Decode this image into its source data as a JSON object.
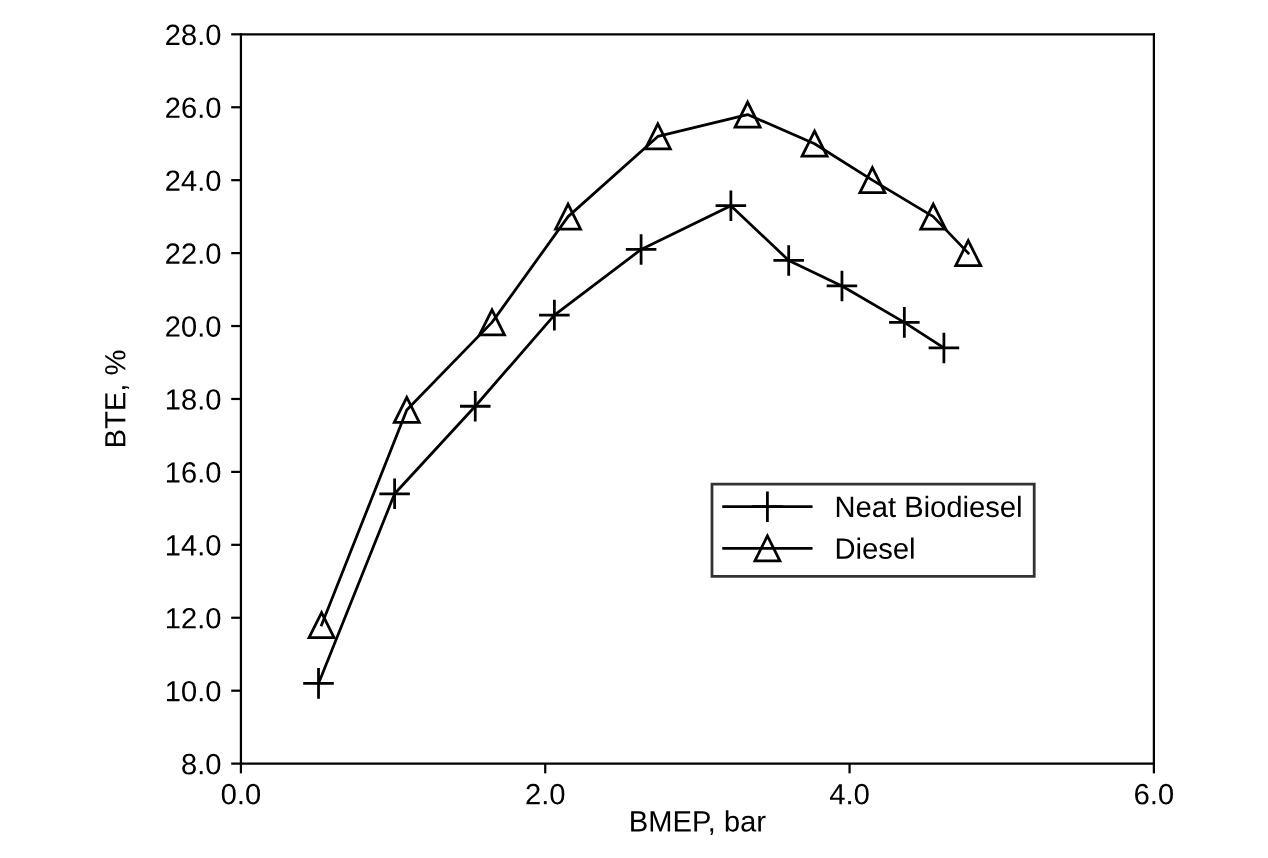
{
  "chart_data": {
    "type": "line",
    "xlabel": "BMEP, bar",
    "ylabel": "BTE, %",
    "xlim": [
      0,
      6
    ],
    "ylim": [
      8,
      28
    ],
    "xticks": [
      {
        "value": 0,
        "label": "0.0"
      },
      {
        "value": 2,
        "label": "2.0"
      },
      {
        "value": 4,
        "label": "4.0"
      },
      {
        "value": 6,
        "label": "6.0"
      }
    ],
    "yticks": [
      {
        "value": 8,
        "label": "8.0"
      },
      {
        "value": 10,
        "label": "10.0"
      },
      {
        "value": 12,
        "label": "12.0"
      },
      {
        "value": 14,
        "label": "14.0"
      },
      {
        "value": 16,
        "label": "16.0"
      },
      {
        "value": 18,
        "label": "18.0"
      },
      {
        "value": 20,
        "label": "20.0"
      },
      {
        "value": 22,
        "label": "22.0"
      },
      {
        "value": 24,
        "label": "24.0"
      },
      {
        "value": 26,
        "label": "26.0"
      },
      {
        "value": 28,
        "label": "28.0"
      }
    ],
    "grid": false,
    "legend": "right",
    "line_style": "solid",
    "series": [
      {
        "name": "Neat Biodiesel",
        "color": "#000000",
        "marker": "cross",
        "x": [
          0.51,
          1.01,
          1.54,
          2.06,
          2.63,
          3.22,
          3.6,
          3.95,
          4.36,
          4.62
        ],
        "values": [
          10.2,
          15.4,
          17.8,
          20.3,
          22.1,
          23.3,
          21.8,
          21.1,
          20.1,
          19.4
        ]
      },
      {
        "name": "Diesel",
        "color": "#000000",
        "marker": "triangle",
        "x": [
          0.53,
          1.09,
          1.65,
          2.15,
          2.74,
          3.33,
          3.77,
          4.15,
          4.55,
          4.78
        ],
        "values": [
          11.8,
          17.7,
          20.1,
          23.0,
          25.2,
          25.8,
          25.0,
          24.0,
          23.0,
          22.0
        ]
      }
    ]
  }
}
